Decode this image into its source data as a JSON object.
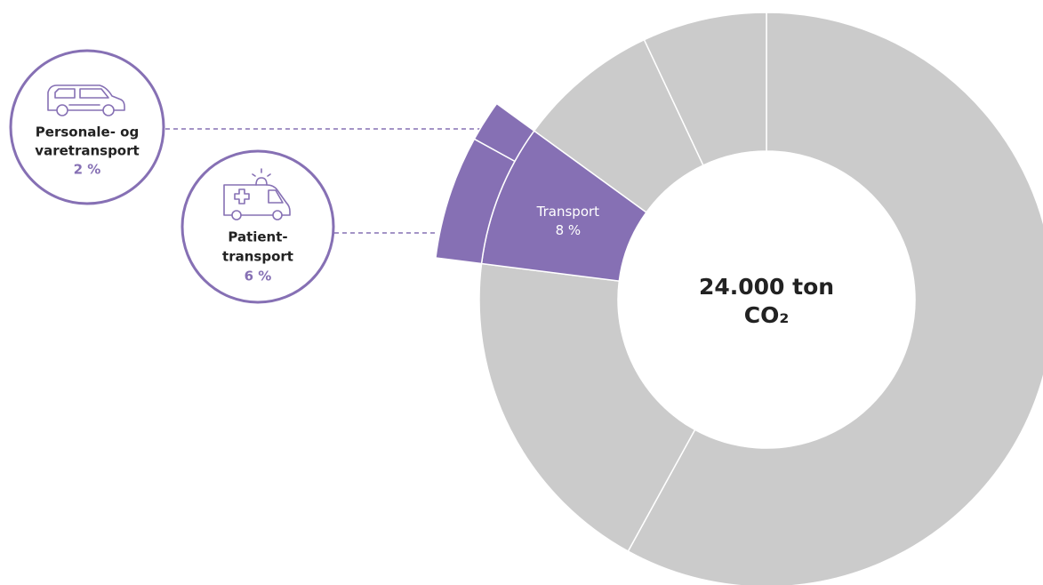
{
  "chart_data": {
    "type": "donut",
    "center_label": [
      "24.000 ton",
      "CO₂"
    ],
    "categories": [
      null,
      null,
      "Transport",
      null,
      null
    ],
    "values": [
      58,
      19,
      8,
      8,
      7
    ],
    "value_labels": [
      null,
      null,
      "8 %",
      null,
      null
    ],
    "colors": [
      "#cbcbcb",
      "#cbcbcb",
      "#8670b4",
      "#cbcbcb",
      "#cbcbcb"
    ],
    "breakdown": {
      "categories": [
        [
          "Patient-",
          "transport"
        ],
        [
          "Personale- og",
          "varetransport"
        ]
      ],
      "values": [
        6,
        2
      ],
      "value_labels": [
        "6 %",
        "2 %"
      ],
      "color": "#8670b4"
    }
  }
}
